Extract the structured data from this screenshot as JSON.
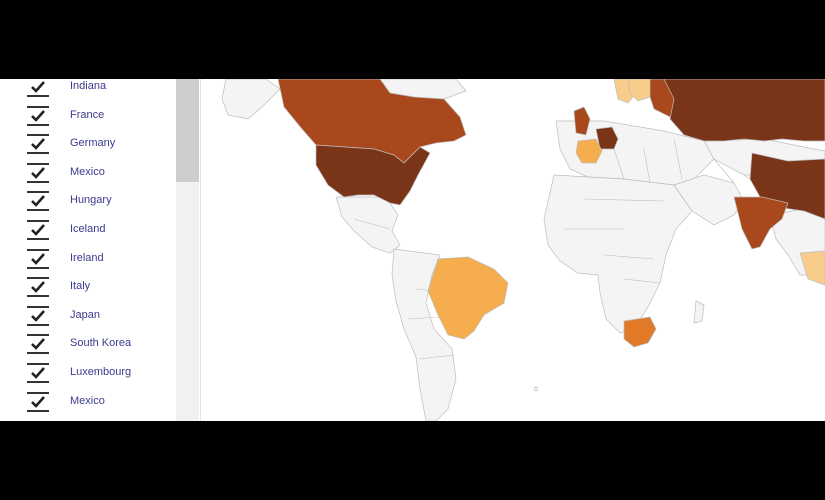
{
  "country_filter": {
    "items": [
      {
        "label": "Indiana",
        "checked": true
      },
      {
        "label": "France",
        "checked": true
      },
      {
        "label": "Germany",
        "checked": true
      },
      {
        "label": "Mexico",
        "checked": true
      },
      {
        "label": "Hungary",
        "checked": true
      },
      {
        "label": "Iceland",
        "checked": true
      },
      {
        "label": "Ireland",
        "checked": true
      },
      {
        "label": "Italy",
        "checked": true
      },
      {
        "label": "Japan",
        "checked": true
      },
      {
        "label": "South Korea",
        "checked": true
      },
      {
        "label": "Luxembourg",
        "checked": true
      },
      {
        "label": "Mexico",
        "checked": true
      }
    ]
  },
  "map": {
    "colors": {
      "background": "#ffffff",
      "no_data": "#f4f4f4",
      "border": "#bdbdbd",
      "darkest": "#7a3418",
      "dark": "#a8481c",
      "medium": "#e07a28",
      "light": "#f5ad4d",
      "lightest": "#f8cd8c"
    }
  }
}
